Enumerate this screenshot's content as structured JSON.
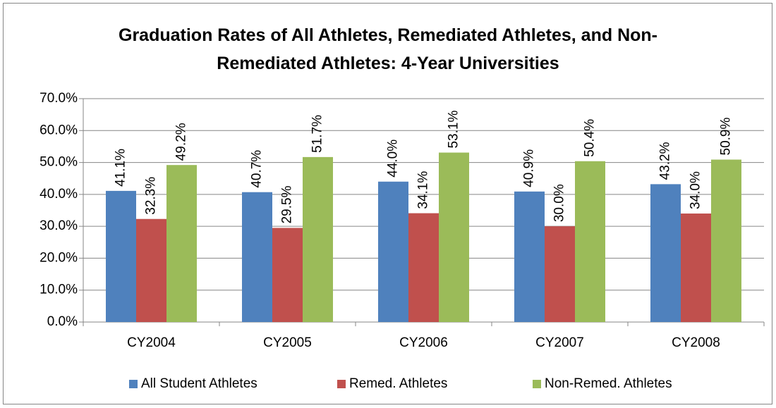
{
  "chart_data": {
    "type": "bar",
    "title": "Graduation Rates of All Athletes, Remediated Athletes, and Non-Remediated Athletes: 4-Year Universities",
    "categories": [
      "CY2004",
      "CY2005",
      "CY2006",
      "CY2007",
      "CY2008"
    ],
    "series": [
      {
        "name": "All Student Athletes",
        "color": "#4f81bd",
        "values": [
          41.1,
          40.7,
          44.0,
          40.9,
          43.2
        ],
        "value_labels": [
          "41.1%",
          "40.7%",
          "44.0%",
          "40.9%",
          "43.2%"
        ]
      },
      {
        "name": "Remed. Athletes",
        "color": "#c0504d",
        "values": [
          32.3,
          29.5,
          34.1,
          30.0,
          34.0
        ],
        "value_labels": [
          "32.3%",
          "29.5%",
          "34.1%",
          "30.0%",
          "34.0%"
        ]
      },
      {
        "name": "Non-Remed. Athletes",
        "color": "#9bbb59",
        "values": [
          49.2,
          51.7,
          53.1,
          50.4,
          50.9
        ],
        "value_labels": [
          "49.2%",
          "51.7%",
          "53.1%",
          "50.4%",
          "50.9%"
        ]
      }
    ],
    "ylim": [
      0,
      70
    ],
    "yticks": [
      {
        "value": 0,
        "label": "0.0%"
      },
      {
        "value": 10,
        "label": "10.0%"
      },
      {
        "value": 20,
        "label": "20.0%"
      },
      {
        "value": 30,
        "label": "30.0%"
      },
      {
        "value": 40,
        "label": "40.0%"
      },
      {
        "value": 50,
        "label": "50.0%"
      },
      {
        "value": 60,
        "label": "60.0%"
      },
      {
        "value": 70,
        "label": "70.0%"
      }
    ],
    "grid": true,
    "legend": "bottom"
  }
}
